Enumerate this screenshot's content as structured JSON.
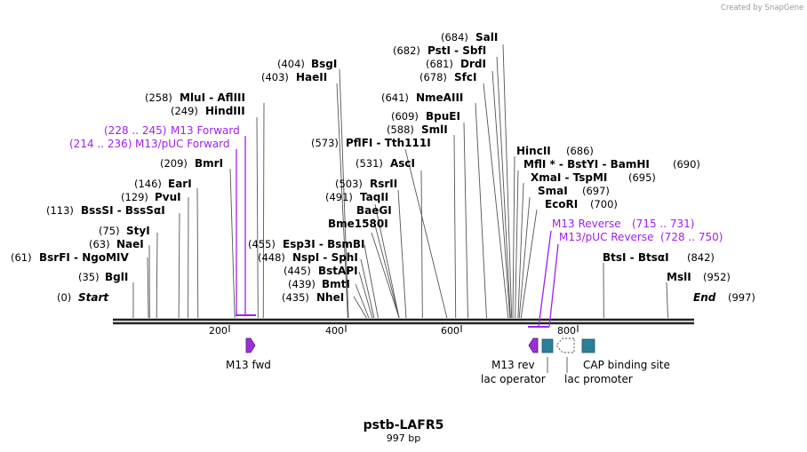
{
  "watermark": "Created by SnapGene",
  "title": "pstb-LAFR5",
  "length_label": "997 bp",
  "map": {
    "length": 997,
    "ticks": [
      200,
      400,
      600,
      800
    ],
    "start_label": "Start",
    "start_pos": "(0)",
    "end_label": "End",
    "end_pos": "(997)"
  },
  "sites": [
    {
      "id": "bgli",
      "pos": "(35)",
      "name": "BglI",
      "bp": 35
    },
    {
      "id": "bsrfi",
      "pos": "(61)",
      "name": "BsrFI  -  NgoMIV",
      "bp": 61
    },
    {
      "id": "naei",
      "pos": "(63)",
      "name": "NaeI",
      "bp": 63
    },
    {
      "id": "styi",
      "pos": "(75)",
      "name": "StyI",
      "bp": 75
    },
    {
      "id": "bsssi",
      "pos": "(113)",
      "name": "BssSI  -  BssSαI",
      "bp": 113
    },
    {
      "id": "pvui",
      "pos": "(129)",
      "name": "PvuI",
      "bp": 129
    },
    {
      "id": "eari",
      "pos": "(146)",
      "name": "EarI",
      "bp": 146
    },
    {
      "id": "bmri",
      "pos": "(209)",
      "name": "BmrI",
      "bp": 209
    },
    {
      "id": "hindiii",
      "pos": "(249)",
      "name": "HindIII",
      "bp": 249
    },
    {
      "id": "mlui",
      "pos": "(258)",
      "name": "MluI  -  AflIII",
      "bp": 258
    },
    {
      "id": "haeii",
      "pos": "(403)",
      "name": "HaeII",
      "bp": 403
    },
    {
      "id": "bsgi",
      "pos": "(404)",
      "name": "BsgI",
      "bp": 404
    },
    {
      "id": "nhei",
      "pos": "(435)",
      "name": "NheI",
      "bp": 435
    },
    {
      "id": "bmti",
      "pos": "(439)",
      "name": "BmtI",
      "bp": 439
    },
    {
      "id": "bstapi",
      "pos": "(445)",
      "name": "BstAPI",
      "bp": 445
    },
    {
      "id": "nspi",
      "pos": "(448)",
      "name": "NspI  -  SphI",
      "bp": 448
    },
    {
      "id": "esp3i",
      "pos": "(455)",
      "name": "Esp3I  -  BsmBI",
      "bp": 455
    },
    {
      "id": "bme1580i",
      "pos": "",
      "name": "Bme1580I",
      "bp": 491
    },
    {
      "id": "baegi",
      "pos": "",
      "name": "BaeGI",
      "bp": 491
    },
    {
      "id": "taqii",
      "pos": "(491)",
      "name": "TaqII",
      "bp": 491
    },
    {
      "id": "rsrii",
      "pos": "(503)",
      "name": "RsrII",
      "bp": 503
    },
    {
      "id": "asci",
      "pos": "(531)",
      "name": "AscI",
      "bp": 531
    },
    {
      "id": "pflfi",
      "pos": "(573)",
      "name": "PflFI  -  Tth111I",
      "bp": 573
    },
    {
      "id": "smli",
      "pos": "(588)",
      "name": "SmlI",
      "bp": 588
    },
    {
      "id": "bpuei",
      "pos": "(609)",
      "name": "BpuEI",
      "bp": 609
    },
    {
      "id": "nmeaiii",
      "pos": "(641)",
      "name": "NmeAIII",
      "bp": 641
    },
    {
      "id": "sfci",
      "pos": "(678)",
      "name": "SfcI",
      "bp": 678
    },
    {
      "id": "drdi",
      "pos": "(681)",
      "name": "DrdI",
      "bp": 681
    },
    {
      "id": "psti",
      "pos": "(682)",
      "name": "PstI  -  SbfI",
      "bp": 682
    },
    {
      "id": "sali",
      "pos": "(684)",
      "name": "SalI",
      "bp": 684
    },
    {
      "id": "hincii",
      "pos": "(686)",
      "name": "HincII",
      "bp": 686
    },
    {
      "id": "mfli",
      "pos": "(690)",
      "name": "MflI *  -  BstYI  -  BamHI",
      "bp": 690
    },
    {
      "id": "xmai",
      "pos": "(695)",
      "name": "XmaI  -  TspMI",
      "bp": 695
    },
    {
      "id": "smai",
      "pos": "(697)",
      "name": "SmaI",
      "bp": 697
    },
    {
      "id": "ecori",
      "pos": "(700)",
      "name": "EcoRI",
      "bp": 700
    },
    {
      "id": "btsi",
      "pos": "(842)",
      "name": "BtsI  -  BtsαI",
      "bp": 842
    },
    {
      "id": "msli",
      "pos": "(952)",
      "name": "MslI",
      "bp": 952
    }
  ],
  "primers": [
    {
      "id": "m13-forward",
      "name": "M13 Forward",
      "pos": "(228 .. 245)",
      "start": 228,
      "end": 245
    },
    {
      "id": "m13-puc-forward",
      "name": "M13/pUC Forward",
      "pos": "(214 .. 236)",
      "start": 214,
      "end": 236
    },
    {
      "id": "m13-reverse",
      "name": "M13 Reverse",
      "pos": "(715 .. 731)",
      "start": 715,
      "end": 731
    },
    {
      "id": "m13-puc-reverse",
      "name": "M13/pUC Reverse",
      "pos": "(728 .. 750)",
      "start": 728,
      "end": 750
    }
  ],
  "features": [
    {
      "id": "m13-fwd",
      "label": "M13 fwd",
      "color": "#9b2fd6"
    },
    {
      "id": "m13-rev",
      "label": "M13 rev",
      "color": "#9b2fd6"
    },
    {
      "id": "lac-operator",
      "label": "lac operator",
      "color": "#2c7f99"
    },
    {
      "id": "lac-promoter",
      "label": "lac promoter",
      "color": "#ffffff"
    },
    {
      "id": "cap-binding-site",
      "label": "CAP binding site",
      "color": "#2c7f99"
    }
  ],
  "colors": {
    "primer": "#a020f0",
    "accent": "#9b2fd6",
    "teal": "#2c7f99"
  }
}
